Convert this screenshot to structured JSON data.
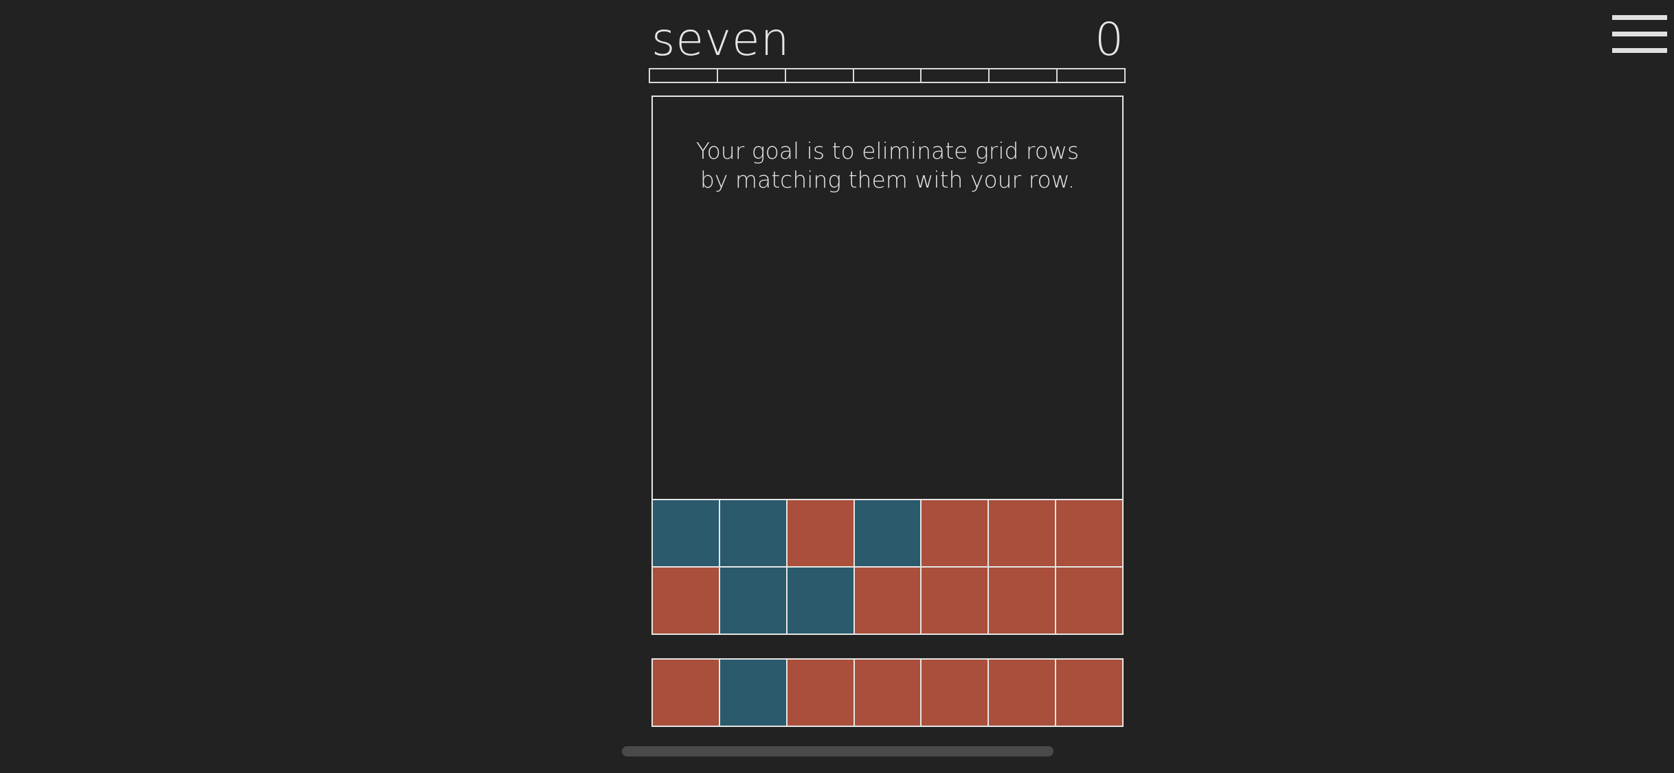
{
  "header": {
    "title": "seven",
    "score": "0"
  },
  "progress": {
    "segments": 7,
    "filled": 0
  },
  "board": {
    "message": "Your goal is to eliminate grid rows by matching them with your row.",
    "rows": [
      [
        "blue",
        "blue",
        "red",
        "blue",
        "red",
        "red",
        "red"
      ],
      [
        "red",
        "blue",
        "blue",
        "red",
        "red",
        "red",
        "red"
      ]
    ]
  },
  "player_row": [
    "red",
    "blue",
    "red",
    "red",
    "red",
    "red",
    "red"
  ],
  "colors": {
    "background": "#222222",
    "red": "#a94f3b",
    "blue": "#2a5a6c",
    "line": "#e6e6e6"
  },
  "icons": {
    "menu": "hamburger-menu-icon"
  }
}
